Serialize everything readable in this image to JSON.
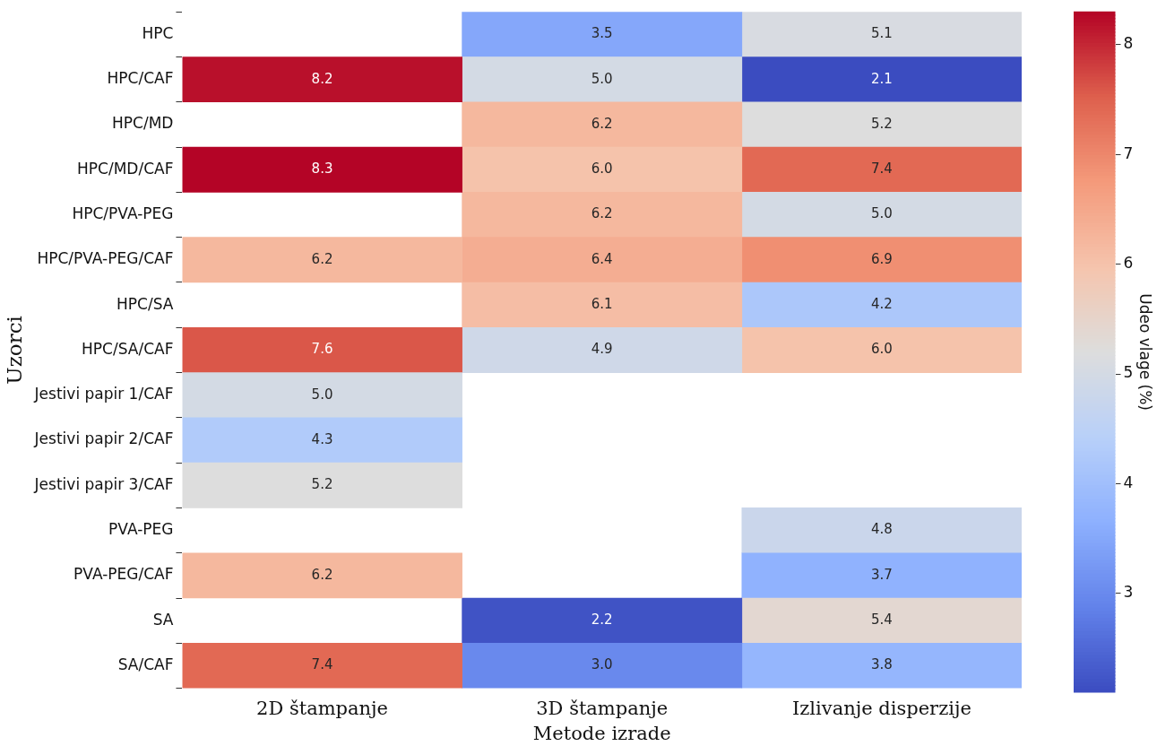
{
  "chart_data": {
    "type": "heatmap",
    "xlabel": "Metode izrade",
    "ylabel": "Uzorci",
    "clabel": "Udeo vlage (%)",
    "categories": [
      "2D štampanje",
      "3D štampanje",
      "Izlivanje disperzije"
    ],
    "y_categories": [
      "HPC",
      "HPC/CAF",
      "HPC/MD",
      "HPC/MD/CAF",
      "HPC/PVA-PEG",
      "HPC/PVA-PEG/CAF",
      "HPC/SA",
      "HPC/SA/CAF",
      "Jestivi papir 1/CAF",
      "Jestivi papir 2/CAF",
      "Jestivi papir 3/CAF",
      "PVA-PEG",
      "PVA-PEG/CAF",
      "SA",
      "SA/CAF"
    ],
    "cells": [
      [
        null,
        3.5,
        5.1
      ],
      [
        8.2,
        5.0,
        2.1
      ],
      [
        null,
        6.2,
        5.2
      ],
      [
        8.3,
        6.0,
        7.4
      ],
      [
        null,
        6.2,
        5.0
      ],
      [
        6.2,
        6.4,
        6.9
      ],
      [
        null,
        6.1,
        4.2
      ],
      [
        7.6,
        4.9,
        6.0
      ],
      [
        5.0,
        null,
        null
      ],
      [
        4.3,
        null,
        null
      ],
      [
        5.2,
        null,
        null
      ],
      [
        null,
        null,
        4.8
      ],
      [
        6.2,
        null,
        3.7
      ],
      [
        null,
        2.2,
        5.4
      ],
      [
        7.4,
        3.0,
        3.8
      ]
    ],
    "cell_labels": [
      [
        null,
        "3.5",
        "5.1"
      ],
      [
        "8.2",
        "5.0",
        "2.1"
      ],
      [
        null,
        "6.2",
        "5.2"
      ],
      [
        "8.3",
        "6.0",
        "7.4"
      ],
      [
        null,
        "6.2",
        "5.0"
      ],
      [
        "6.2",
        "6.4",
        "6.9"
      ],
      [
        null,
        "6.1",
        "4.2"
      ],
      [
        "7.6",
        "4.9",
        "6.0"
      ],
      [
        "5.0",
        null,
        null
      ],
      [
        "4.3",
        null,
        null
      ],
      [
        "5.2",
        null,
        null
      ],
      [
        null,
        null,
        "4.8"
      ],
      [
        "6.2",
        null,
        "3.7"
      ],
      [
        null,
        "2.2",
        "5.4"
      ],
      [
        "7.4",
        "3.0",
        "3.8"
      ]
    ],
    "clim": [
      2.1,
      8.3
    ],
    "cticks": [
      3,
      4,
      5,
      6,
      7,
      8
    ],
    "data_labels": true
  }
}
